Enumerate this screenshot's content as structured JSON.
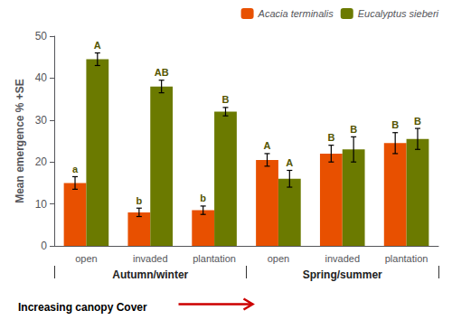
{
  "chart_data": {
    "type": "bar",
    "ylabel": "Mean emergence % +SE",
    "categories": [
      "open",
      "invaded",
      "plantation",
      "open",
      "invaded",
      "plantation"
    ],
    "groups": [
      "Autumn/winter",
      "Spring/summer"
    ],
    "series": [
      {
        "name": "Acacia terminalis",
        "color": "#e85000",
        "values": [
          15.0,
          8.0,
          8.5,
          20.5,
          22.0,
          24.5
        ],
        "errors": [
          1.5,
          1.0,
          1.0,
          1.5,
          2.0,
          2.5
        ],
        "labels": [
          "a",
          "b",
          "b",
          "A",
          "B",
          "B"
        ]
      },
      {
        "name": "Eucalyptus sieberi",
        "color": "#6b7a00",
        "values": [
          44.5,
          38.0,
          32.0,
          16.0,
          23.0,
          25.5
        ],
        "errors": [
          1.5,
          1.5,
          1.0,
          2.0,
          3.0,
          2.5
        ],
        "labels": [
          "A",
          "AB",
          "B",
          "A",
          "B",
          "B"
        ]
      }
    ],
    "ylim": [
      0,
      50
    ],
    "yticks": [
      0,
      10,
      20,
      30,
      40,
      50
    ],
    "annotation": "Increasing canopy Cover",
    "legend": "upper right",
    "grid": false
  }
}
